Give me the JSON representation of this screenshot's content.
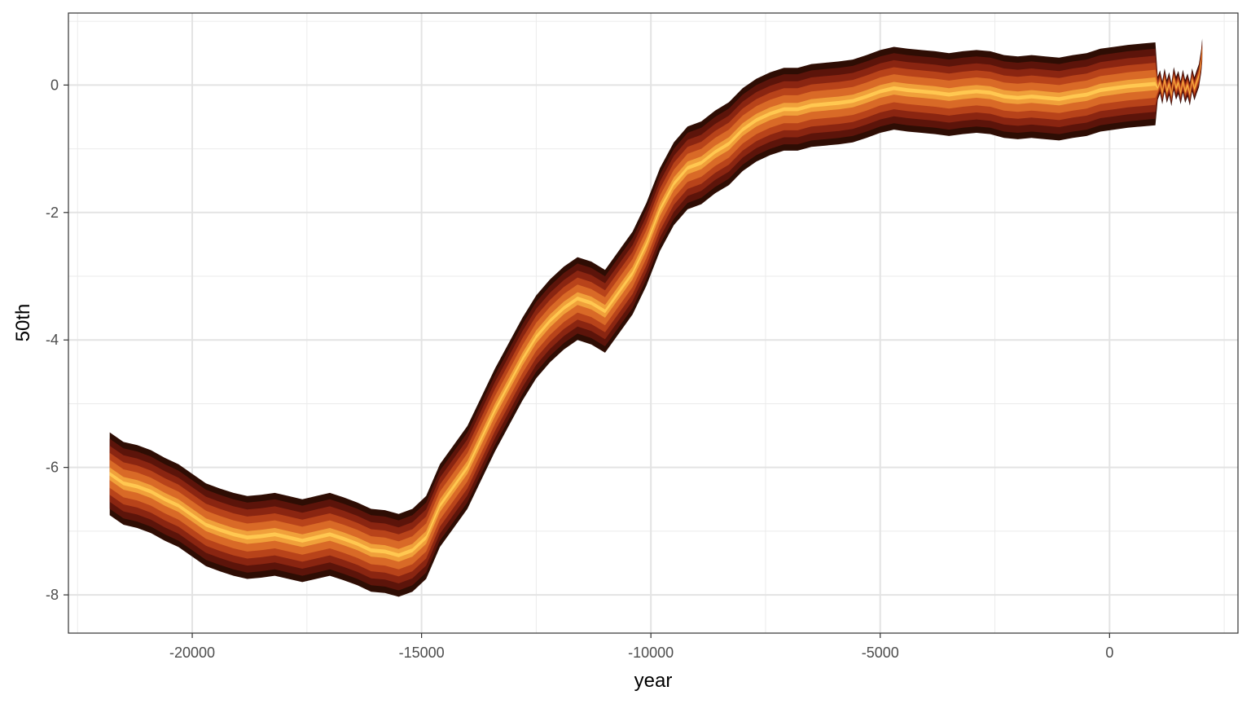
{
  "chart_data": {
    "type": "area",
    "title": "",
    "xlabel": "year",
    "ylabel": "50th",
    "xlim": [
      -22700,
      2800
    ],
    "ylim": [
      -8.6,
      1.13
    ],
    "x_ticks": [
      -20000,
      -15000,
      -10000,
      -5000,
      0
    ],
    "x_tick_labels": [
      "-20000",
      "-15000",
      "-10000",
      "-5000",
      "0"
    ],
    "y_ticks": [
      -8,
      -6,
      -4,
      -2,
      0
    ],
    "y_tick_labels": [
      "-8",
      "-6",
      "-4",
      "-2",
      "0"
    ],
    "grid": true,
    "legend": "none",
    "band_colors": [
      "#2e0d04",
      "#5c140a",
      "#8a2511",
      "#b8431a",
      "#d96a27",
      "#f0a03a",
      "#ffc851"
    ],
    "band_halfwidths": [
      0.65,
      0.55,
      0.44,
      0.33,
      0.22,
      0.1,
      0.03
    ],
    "median": {
      "x": [
        -21800,
        -21500,
        -21200,
        -20900,
        -20600,
        -20300,
        -20000,
        -19700,
        -19400,
        -19100,
        -18800,
        -18500,
        -18200,
        -17900,
        -17600,
        -17300,
        -17000,
        -16700,
        -16400,
        -16100,
        -15800,
        -15500,
        -15200,
        -14900,
        -14600,
        -14300,
        -14000,
        -13700,
        -13400,
        -13100,
        -12800,
        -12500,
        -12200,
        -11900,
        -11600,
        -11300,
        -11000,
        -10700,
        -10400,
        -10100,
        -9800,
        -9500,
        -9200,
        -8900,
        -8600,
        -8300,
        -8000,
        -7700,
        -7400,
        -7100,
        -6800,
        -6500,
        -6200,
        -5900,
        -5600,
        -5300,
        -5000,
        -4700,
        -4400,
        -4100,
        -3800,
        -3500,
        -3200,
        -2900,
        -2600,
        -2300,
        -2000,
        -1700,
        -1400,
        -1100,
        -800,
        -500,
        -200,
        100,
        400,
        700,
        1000
      ],
      "y": [
        -6.1,
        -6.25,
        -6.3,
        -6.38,
        -6.5,
        -6.6,
        -6.75,
        -6.9,
        -6.98,
        -7.05,
        -7.1,
        -7.08,
        -7.05,
        -7.1,
        -7.15,
        -7.1,
        -7.05,
        -7.12,
        -7.2,
        -7.3,
        -7.32,
        -7.38,
        -7.3,
        -7.1,
        -6.6,
        -6.3,
        -6.0,
        -5.55,
        -5.1,
        -4.7,
        -4.3,
        -3.95,
        -3.7,
        -3.5,
        -3.35,
        -3.42,
        -3.55,
        -3.25,
        -2.95,
        -2.5,
        -1.95,
        -1.55,
        -1.3,
        -1.22,
        -1.05,
        -0.92,
        -0.7,
        -0.55,
        -0.45,
        -0.38,
        -0.38,
        -0.32,
        -0.3,
        -0.28,
        -0.25,
        -0.18,
        -0.1,
        -0.05,
        -0.08,
        -0.1,
        -0.12,
        -0.15,
        -0.12,
        -0.1,
        -0.12,
        -0.18,
        -0.2,
        -0.18,
        -0.2,
        -0.22,
        -0.18,
        -0.15,
        -0.08,
        -0.05,
        -0.02,
        0.0,
        0.02
      ]
    },
    "recent": {
      "x": [
        1050,
        1100,
        1150,
        1200,
        1250,
        1300,
        1350,
        1400,
        1450,
        1500,
        1550,
        1600,
        1650,
        1700,
        1750,
        1800,
        1850,
        1900,
        1950,
        2000,
        2020
      ],
      "y": [
        -0.05,
        0.05,
        -0.12,
        0.08,
        -0.1,
        0.02,
        -0.15,
        0.1,
        -0.05,
        0.04,
        -0.12,
        0.06,
        -0.1,
        0.0,
        -0.14,
        0.08,
        -0.06,
        0.05,
        0.15,
        0.38,
        0.55
      ]
    }
  }
}
